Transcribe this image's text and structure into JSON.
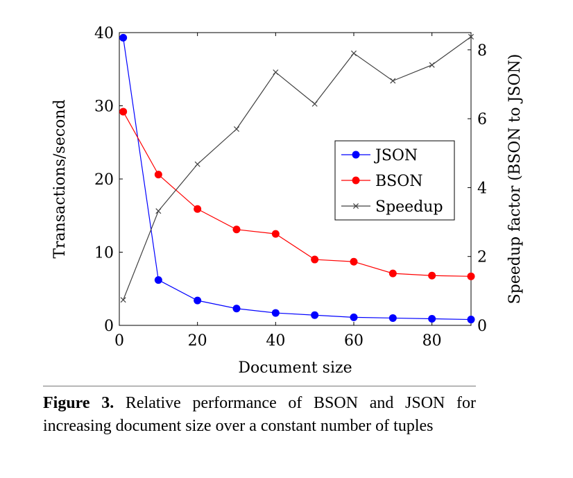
{
  "chart_data": {
    "type": "line",
    "xlabel": "Document size",
    "ylabel_left": "Transactions/second",
    "ylabel_right": "Speedup factor (BSON to JSON)",
    "xlim": [
      0,
      90
    ],
    "ylim_left": [
      0,
      40
    ],
    "ylim_right": [
      0,
      8.5
    ],
    "x_ticks": [
      0,
      20,
      40,
      60,
      80
    ],
    "y_left_ticks": [
      0,
      10,
      20,
      30,
      40
    ],
    "y_right_ticks": [
      0,
      2,
      4,
      6,
      8
    ],
    "grid": false,
    "legend_position": "center-right",
    "x": [
      1,
      10,
      20,
      30,
      40,
      50,
      60,
      70,
      80,
      90
    ],
    "series": [
      {
        "name": "JSON",
        "axis": "left",
        "color": "#0000ff",
        "marker": "circle",
        "values": [
          39.3,
          6.2,
          3.4,
          2.3,
          1.7,
          1.4,
          1.1,
          1.0,
          0.9,
          0.8
        ]
      },
      {
        "name": "BSON",
        "axis": "left",
        "color": "#ff0000",
        "marker": "circle",
        "values": [
          29.2,
          20.6,
          15.9,
          13.1,
          12.5,
          9.0,
          8.7,
          7.1,
          6.8,
          6.7
        ]
      },
      {
        "name": "Speedup",
        "axis": "right",
        "color": "#404040",
        "marker": "x",
        "values": [
          0.74,
          3.32,
          4.68,
          5.7,
          7.35,
          6.43,
          7.9,
          7.1,
          7.56,
          8.38
        ]
      }
    ]
  },
  "caption": {
    "label": "Figure 3.",
    "text": "Relative performance of BSON and JSON for increasing document size over a constant number of tuples"
  }
}
